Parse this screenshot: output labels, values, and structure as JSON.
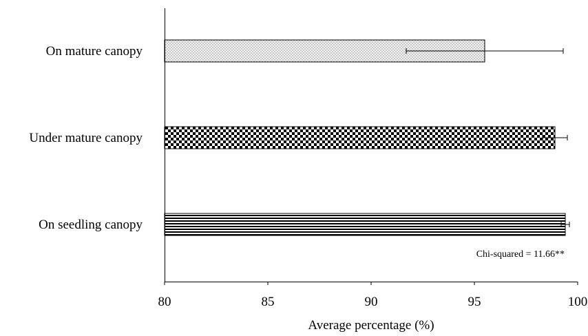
{
  "chart_data": {
    "type": "bar",
    "orientation": "horizontal",
    "categories": [
      "On mature canopy",
      "Under mature canopy",
      "On seedling canopy"
    ],
    "values": [
      95.5,
      98.9,
      99.4
    ],
    "error": [
      3.8,
      0.6,
      0.2
    ],
    "patterns": [
      "dots",
      "checker",
      "hlines"
    ],
    "xlabel": "Average percentage (%)",
    "ylabel": "",
    "title": "",
    "xlim": [
      80,
      100
    ],
    "xticks": [
      80,
      85,
      90,
      95,
      100
    ],
    "grid": false,
    "annotation": "Chi-squared = 11.66**"
  }
}
